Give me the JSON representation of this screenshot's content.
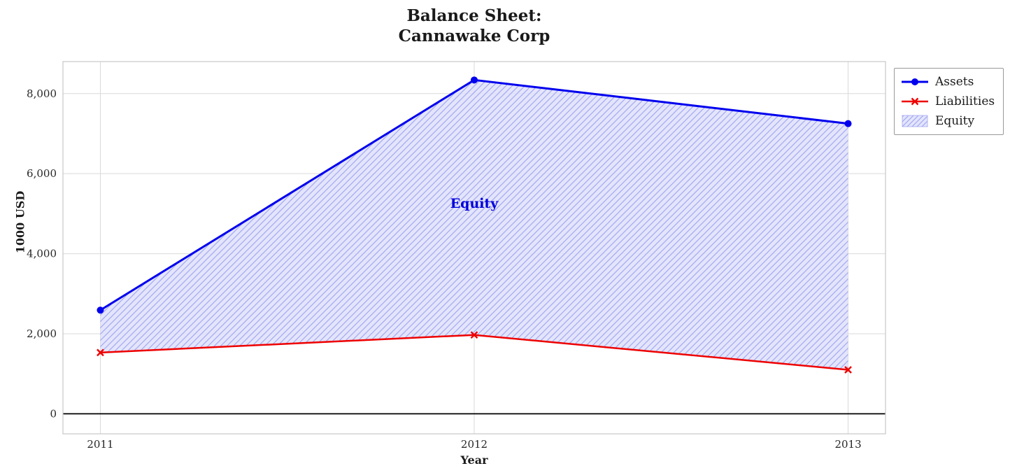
{
  "chart_data": {
    "type": "line",
    "title_lines": [
      "Balance Sheet:",
      "Cannawake Corp"
    ],
    "xlabel": "Year",
    "ylabel": "1000 USD",
    "categories": [
      2011,
      2012,
      2013
    ],
    "series": [
      {
        "name": "Assets",
        "color": "#0000ee",
        "marker": "circle",
        "line_width": 3,
        "values": [
          2590,
          8340,
          7250
        ]
      },
      {
        "name": "Liabilities",
        "color": "#ee0000",
        "marker": "x",
        "line_width": 2.5,
        "values": [
          1530,
          1970,
          1100
        ]
      }
    ],
    "area": {
      "name": "Equity",
      "between": [
        "Liabilities",
        "Assets"
      ],
      "fill": "#dfe1fb",
      "fill_opacity": 0.85,
      "hatch_color": "#a3a9ef"
    },
    "annotation": {
      "text": "Equity",
      "x": 2012,
      "y": 5150,
      "color": "#0000dd"
    },
    "xlim": [
      2010.9,
      2013.1
    ],
    "ylim": [
      -500,
      8800
    ],
    "xticks": [
      2011,
      2012,
      2013
    ],
    "xtick_labels": [
      "2011",
      "2012",
      "2013"
    ],
    "yticks": [
      0,
      2000,
      4000,
      6000,
      8000
    ],
    "ytick_labels": [
      "0",
      "2,000",
      "4,000",
      "6,000",
      "8,000"
    ],
    "grid": true,
    "zero_line": true,
    "legend": {
      "position": "upper-right-outside",
      "entries": [
        "Assets",
        "Liabilities",
        "Equity"
      ]
    },
    "colors": {
      "grid": "#d9d9d9",
      "frame": "#c8c8c8",
      "tick_text": "#262626",
      "zero_line": "#000000"
    }
  }
}
